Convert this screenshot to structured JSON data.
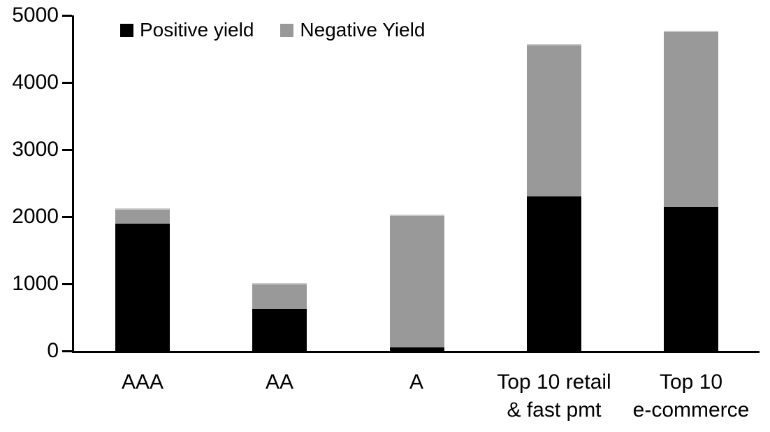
{
  "chart_data": {
    "type": "bar",
    "stacked": true,
    "title": "",
    "xlabel": "",
    "ylabel": "",
    "categories": [
      "AAA",
      "AA",
      "A",
      "Top 10 retail\n& fast pmt",
      "Top 10\ne-commerce"
    ],
    "series": [
      {
        "name": "Positive yield",
        "color": "#000000",
        "values": [
          1900,
          630,
          55,
          2300,
          2150
        ]
      },
      {
        "name": "Negative Yield",
        "color": "#999999",
        "values": [
          230,
          385,
          1980,
          2275,
          2620
        ]
      }
    ],
    "totals": [
      2130,
      1015,
      2035,
      4575,
      4770
    ],
    "ylim": [
      0,
      5000
    ],
    "yticks": [
      0,
      1000,
      2000,
      3000,
      4000,
      5000
    ],
    "grid": false,
    "legend_position": "top-left-inside"
  },
  "legend": {
    "items": [
      {
        "label": "Positive yield",
        "color": "#000000"
      },
      {
        "label": "Negative Yield",
        "color": "#999999"
      }
    ]
  },
  "axis": {
    "line_color": "#000000",
    "text_color": "#000000"
  }
}
